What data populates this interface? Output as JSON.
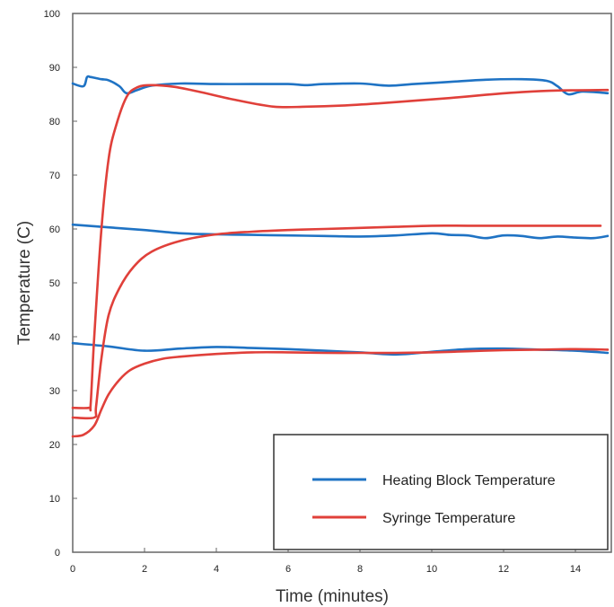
{
  "chart_data": {
    "type": "line",
    "title": "",
    "xlabel": "Time (minutes)",
    "ylabel": "Temperature (C)",
    "xlim": [
      0,
      15
    ],
    "ylim": [
      0,
      100
    ],
    "xticks": [
      0,
      2,
      4,
      6,
      8,
      10,
      12,
      14
    ],
    "yticks": [
      0,
      10,
      20,
      30,
      40,
      50,
      60,
      70,
      80,
      90,
      100
    ],
    "grid": false,
    "legend": {
      "position": "bottom-right",
      "entries": [
        {
          "name": "Heating Block Temperature",
          "color": "#1f73c4"
        },
        {
          "name": "Syringe Temperature",
          "color": "#e0403a"
        }
      ]
    },
    "series": [
      {
        "name": "Heating Block Temperature",
        "color": "#1f73c4",
        "x": [
          0,
          0.3,
          0.4,
          0.5,
          0.8,
          1.0,
          1.3,
          1.5,
          1.8,
          2.2,
          3.0,
          4.0,
          5.0,
          6.0,
          6.5,
          7.0,
          8.0,
          8.8,
          9.5,
          10.5,
          11.5,
          12.5,
          13.2,
          13.5,
          13.8,
          14.2,
          14.9
        ],
        "y": [
          87,
          86.5,
          88.2,
          88.2,
          87.8,
          87.6,
          86.5,
          85.2,
          85.8,
          86.6,
          87.0,
          86.9,
          86.9,
          86.9,
          86.7,
          86.9,
          87.0,
          86.6,
          86.9,
          87.3,
          87.7,
          87.8,
          87.5,
          86.5,
          85.0,
          85.5,
          85.2
        ]
      },
      {
        "name": "Heating Block Temperature",
        "color": "#1f73c4",
        "x": [
          0,
          1.0,
          2.0,
          3.0,
          4.0,
          5.0,
          6.0,
          7.0,
          8.0,
          9.0,
          10.0,
          10.5,
          11.0,
          11.5,
          12.0,
          12.5,
          13.0,
          13.5,
          14.0,
          14.5,
          14.9
        ],
        "y": [
          60.8,
          60.3,
          59.8,
          59.2,
          59.0,
          58.9,
          58.8,
          58.7,
          58.6,
          58.8,
          59.2,
          58.9,
          58.8,
          58.3,
          58.8,
          58.7,
          58.3,
          58.6,
          58.4,
          58.3,
          58.7
        ]
      },
      {
        "name": "Heating Block Temperature",
        "color": "#1f73c4",
        "x": [
          0,
          1.0,
          2.0,
          3.0,
          4.0,
          5.0,
          6.0,
          7.0,
          8.0,
          9.0,
          10.0,
          11.0,
          12.0,
          13.0,
          14.0,
          14.9
        ],
        "y": [
          38.8,
          38.2,
          37.4,
          37.8,
          38.1,
          37.9,
          37.7,
          37.4,
          37.1,
          36.7,
          37.2,
          37.7,
          37.8,
          37.6,
          37.4,
          37.0
        ]
      },
      {
        "name": "Syringe Temperature",
        "color": "#e0403a",
        "x": [
          0,
          0.45,
          0.5,
          0.6,
          0.8,
          1.0,
          1.2,
          1.5,
          1.8,
          2.2,
          2.8,
          3.5,
          4.5,
          5.6,
          6.5,
          7.5,
          8.5,
          9.5,
          10.5,
          11.5,
          12.5,
          13.5,
          14.9
        ],
        "y": [
          26.8,
          26.8,
          27.5,
          40,
          60,
          73,
          79,
          84.5,
          86.3,
          86.7,
          86.4,
          85.5,
          84.0,
          82.7,
          82.7,
          82.9,
          83.3,
          83.8,
          84.3,
          84.9,
          85.4,
          85.7,
          85.8
        ]
      },
      {
        "name": "Syringe Temperature",
        "color": "#e0403a",
        "x": [
          0,
          0.6,
          0.65,
          0.8,
          1.0,
          1.3,
          1.7,
          2.2,
          3.0,
          4.0,
          5.0,
          6.0,
          7.0,
          8.0,
          9.0,
          10.0,
          11.0,
          12.0,
          13.0,
          14.0,
          14.7
        ],
        "y": [
          25,
          25,
          27,
          36,
          44,
          49,
          53,
          55.8,
          57.8,
          59.0,
          59.5,
          59.8,
          60.0,
          60.2,
          60.4,
          60.6,
          60.6,
          60.6,
          60.6,
          60.6,
          60.6
        ]
      },
      {
        "name": "Syringe Temperature",
        "color": "#e0403a",
        "x": [
          0,
          0.3,
          0.6,
          0.8,
          1.0,
          1.3,
          1.6,
          2.0,
          2.5,
          3.0,
          4.0,
          5.0,
          6.0,
          7.0,
          8.0,
          9.0,
          10.0,
          11.0,
          12.0,
          13.0,
          14.0,
          14.9
        ],
        "y": [
          21.5,
          21.8,
          23.5,
          26.5,
          29.3,
          32,
          33.8,
          35.0,
          35.9,
          36.3,
          36.8,
          37.1,
          37.1,
          37.0,
          37.0,
          37.0,
          37.1,
          37.3,
          37.5,
          37.6,
          37.7,
          37.6
        ]
      }
    ]
  }
}
